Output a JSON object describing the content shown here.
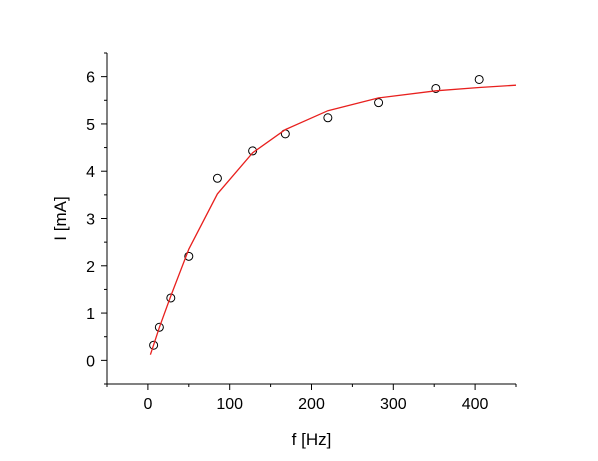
{
  "chart_data": {
    "type": "scatter",
    "title": "",
    "xlabel": "f  [Hz]",
    "ylabel": "I  [mA]",
    "xlim": [
      -50,
      450
    ],
    "ylim": [
      -0.5,
      6.5
    ],
    "x_ticks": [
      0,
      100,
      200,
      300,
      400
    ],
    "y_ticks": [
      0,
      1,
      2,
      3,
      4,
      5,
      6
    ],
    "grid": false,
    "legend": "none",
    "series": [
      {
        "type": "scatter",
        "marker": "open-circle",
        "color": "#000000",
        "points": [
          {
            "x": 7,
            "y": 0.32
          },
          {
            "x": 14,
            "y": 0.7
          },
          {
            "x": 28,
            "y": 1.32
          },
          {
            "x": 50,
            "y": 2.2
          },
          {
            "x": 85,
            "y": 3.85
          },
          {
            "x": 128,
            "y": 4.43
          },
          {
            "x": 168,
            "y": 4.79
          },
          {
            "x": 220,
            "y": 5.13
          },
          {
            "x": 282,
            "y": 5.45
          },
          {
            "x": 352,
            "y": 5.75
          },
          {
            "x": 405,
            "y": 5.94
          }
        ]
      },
      {
        "type": "line",
        "color": "#e8201e",
        "points": [
          {
            "x": 3,
            "y": 0.12
          },
          {
            "x": 14,
            "y": 0.7
          },
          {
            "x": 28,
            "y": 1.36
          },
          {
            "x": 50,
            "y": 2.35
          },
          {
            "x": 85,
            "y": 3.52
          },
          {
            "x": 128,
            "y": 4.39
          },
          {
            "x": 168,
            "y": 4.88
          },
          {
            "x": 220,
            "y": 5.28
          },
          {
            "x": 282,
            "y": 5.55
          },
          {
            "x": 352,
            "y": 5.7
          },
          {
            "x": 405,
            "y": 5.77
          },
          {
            "x": 450,
            "y": 5.82
          }
        ]
      }
    ]
  }
}
